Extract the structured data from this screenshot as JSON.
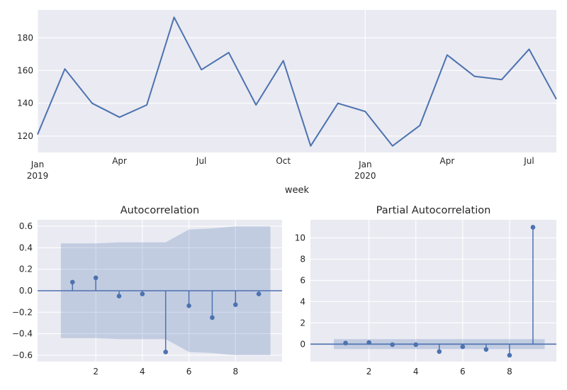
{
  "chart_data": [
    {
      "type": "line",
      "xlabel": "week",
      "ylabel": "",
      "x": [
        "2019-01",
        "2019-02",
        "2019-03",
        "2019-04",
        "2019-05",
        "2019-06",
        "2019-07",
        "2019-08",
        "2019-09",
        "2019-10",
        "2019-11",
        "2019-12",
        "2020-01",
        "2020-02",
        "2020-03",
        "2020-04",
        "2020-05",
        "2020-06",
        "2020-07",
        "2020-08"
      ],
      "series": [
        {
          "values": [
            121,
            161,
            140,
            131.5,
            139,
            192.5,
            160.5,
            171,
            139,
            166,
            114,
            140,
            135,
            114,
            126.5,
            169.5,
            156.5,
            154.5,
            173,
            142.5
          ]
        }
      ],
      "xticks": [
        {
          "x": "2019-01",
          "label": "Jan",
          "sublabel": "2019"
        },
        {
          "x": "2019-04",
          "label": "Apr",
          "sublabel": ""
        },
        {
          "x": "2019-07",
          "label": "Jul",
          "sublabel": ""
        },
        {
          "x": "2019-10",
          "label": "Oct",
          "sublabel": ""
        },
        {
          "x": "2020-01",
          "label": "Jan",
          "sublabel": "2020"
        },
        {
          "x": "2020-04",
          "label": "Apr",
          "sublabel": ""
        },
        {
          "x": "2020-07",
          "label": "Jul",
          "sublabel": ""
        }
      ],
      "yticks": [
        "120",
        "140",
        "160",
        "180"
      ],
      "ylim": [
        110,
        197
      ],
      "grid": true
    },
    {
      "type": "stem",
      "title": "Autocorrelation",
      "lags": [
        1,
        2,
        3,
        4,
        5,
        6,
        7,
        8,
        9
      ],
      "values": [
        0.08,
        0.12,
        -0.05,
        -0.03,
        -0.57,
        -0.14,
        -0.25,
        -0.13,
        -0.03
      ],
      "confidence_band": {
        "lags": [
          0.5,
          1,
          2,
          3,
          4,
          5,
          6,
          7,
          8,
          9,
          9.5
        ],
        "upper": [
          0.44,
          0.44,
          0.44,
          0.45,
          0.45,
          0.45,
          0.57,
          0.58,
          0.6,
          0.6,
          0.6
        ],
        "lower": [
          -0.44,
          -0.44,
          -0.44,
          -0.45,
          -0.45,
          -0.45,
          -0.57,
          -0.58,
          -0.6,
          -0.6,
          -0.6
        ]
      },
      "xticks": [
        "2",
        "4",
        "6",
        "8"
      ],
      "yticks": [
        "0.6",
        "0.4",
        "0.2",
        "0.0",
        "−0.2",
        "−0.4",
        "−0.6"
      ],
      "xlim": [
        -0.5,
        10.0
      ],
      "ylim": [
        -0.66,
        0.66
      ],
      "grid": true
    },
    {
      "type": "stem",
      "title": "Partial Autocorrelation",
      "lags": [
        1,
        2,
        3,
        4,
        5,
        6,
        7,
        8,
        9
      ],
      "values": [
        0.1,
        0.15,
        -0.05,
        -0.05,
        -0.7,
        -0.25,
        -0.5,
        -1.05,
        11.0
      ],
      "confidence_band": {
        "lags": [
          0.5,
          9.5
        ],
        "upper": [
          0.47,
          0.47
        ],
        "lower": [
          -0.47,
          -0.47
        ]
      },
      "xticks": [
        "2",
        "4",
        "6",
        "8"
      ],
      "yticks": [
        "10",
        "8",
        "6",
        "4",
        "2",
        "0"
      ],
      "xlim": [
        -0.5,
        10.0
      ],
      "ylim": [
        -1.65,
        11.7
      ],
      "grid": true
    }
  ]
}
